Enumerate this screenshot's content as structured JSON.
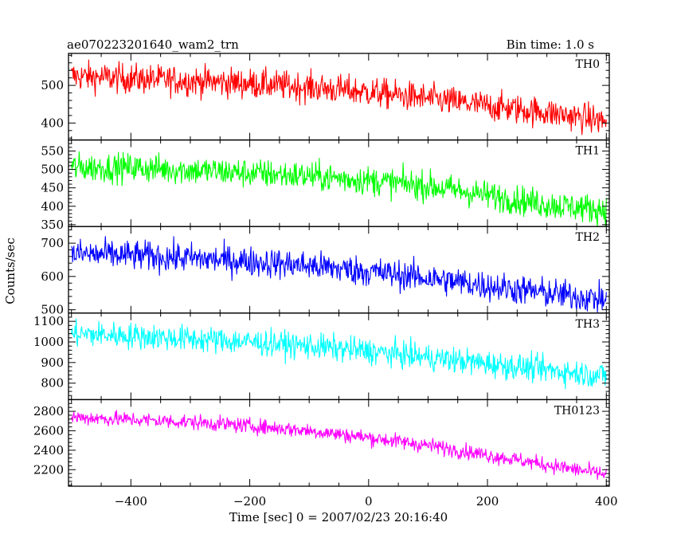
{
  "header": {
    "title": "ae070223201640_wam2_trn",
    "bin_time": "Bin time: 1.0 s"
  },
  "chart_data": {
    "type": "line",
    "title": "ae070223201640_wam2_trn",
    "xlabel": "Time [sec] 0 = 2007/02/23 20:16:40",
    "ylabel": "Counts/sec",
    "xlim": [
      -505,
      405
    ],
    "x_ticks": [
      -400,
      -200,
      0,
      200,
      400
    ],
    "x_tick_labels": [
      "−400",
      "−200",
      "0",
      "200",
      "400"
    ],
    "bin_time_s": 1.0,
    "grid": false,
    "panels": [
      {
        "name": "TH0",
        "color": "#ff0000",
        "ylim": [
          355,
          585
        ],
        "y_ticks": [
          400,
          500
        ],
        "x": [
          -500,
          -400,
          -300,
          -200,
          -100,
          0,
          100,
          200,
          300,
          400
        ],
        "y": [
          525,
          518,
          512,
          505,
          495,
          482,
          465,
          445,
          428,
          405
        ],
        "noise": 28
      },
      {
        "name": "TH1",
        "color": "#00ff00",
        "ylim": [
          345,
          580
        ],
        "y_ticks": [
          350,
          400,
          450,
          500,
          550
        ],
        "x": [
          -500,
          -400,
          -300,
          -200,
          -100,
          0,
          100,
          200,
          300,
          400
        ],
        "y": [
          505,
          505,
          498,
          490,
          482,
          470,
          455,
          430,
          405,
          390
        ],
        "noise": 28
      },
      {
        "name": "TH2",
        "color": "#0000ff",
        "ylim": [
          490,
          750
        ],
        "y_ticks": [
          500,
          600,
          700
        ],
        "x": [
          -500,
          -400,
          -300,
          -200,
          -100,
          0,
          100,
          200,
          300,
          400
        ],
        "y": [
          668,
          663,
          655,
          645,
          632,
          615,
          595,
          572,
          550,
          530
        ],
        "noise": 32
      },
      {
        "name": "TH3",
        "color": "#00ffff",
        "ylim": [
          720,
          1140
        ],
        "y_ticks": [
          800,
          900,
          1000,
          1100
        ],
        "x": [
          -500,
          -400,
          -300,
          -200,
          -100,
          0,
          100,
          200,
          300,
          400
        ],
        "y": [
          1040,
          1030,
          1015,
          1000,
          980,
          955,
          925,
          895,
          865,
          835
        ],
        "noise": 45
      },
      {
        "name": "TH0123",
        "color": "#ff00ff",
        "ylim": [
          2030,
          2920
        ],
        "y_ticks": [
          2200,
          2400,
          2600,
          2800
        ],
        "x": [
          -500,
          -400,
          -300,
          -200,
          -100,
          0,
          100,
          200,
          300,
          400
        ],
        "y": [
          2740,
          2715,
          2690,
          2650,
          2600,
          2530,
          2450,
          2350,
          2250,
          2150
        ],
        "noise": 55
      }
    ]
  }
}
